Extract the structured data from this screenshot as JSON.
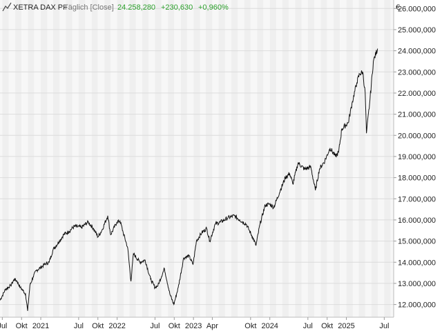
{
  "header": {
    "chart_icon": "line-chart-icon",
    "instrument": "XETRA DAX PF",
    "interval": "Täglich [Close]",
    "last": "24.258,280",
    "change": "+230,630",
    "change_pct": "+0,960%",
    "change_color": "#2ca02c",
    "currency": "€"
  },
  "colors": {
    "band_a": "#f7f7f7",
    "band_b": "#efefef",
    "grid": "#dcdcdc",
    "line": "#111111"
  },
  "chart_data": {
    "type": "line",
    "title": "XETRA DAX PF",
    "xlabel": "",
    "ylabel": "€",
    "ylim": [
      11400,
      26400
    ],
    "xlim": [
      "2020-06-20",
      "2025-08-15"
    ],
    "grid": true,
    "y_ticks": [
      {
        "value": 12000,
        "label": "12.000,000"
      },
      {
        "value": 13000,
        "label": "13.000,000"
      },
      {
        "value": 14000,
        "label": "14.000,000"
      },
      {
        "value": 15000,
        "label": "15.000,000"
      },
      {
        "value": 16000,
        "label": "16.000,000"
      },
      {
        "value": 17000,
        "label": "17.000,000"
      },
      {
        "value": 18000,
        "label": "18.000,000"
      },
      {
        "value": 19000,
        "label": "19.000,000"
      },
      {
        "value": 20000,
        "label": "20.000,000"
      },
      {
        "value": 21000,
        "label": "21.000,000"
      },
      {
        "value": 22000,
        "label": "22.000,000"
      },
      {
        "value": 23000,
        "label": "23.000,000"
      },
      {
        "value": 24000,
        "label": "24.000,000"
      },
      {
        "value": 25000,
        "label": "25.000,000"
      },
      {
        "value": 26000,
        "label": "26.000,000"
      }
    ],
    "x_ticks": [
      {
        "date": "2020-07-01",
        "label": "Jul"
      },
      {
        "date": "2020-10-01",
        "label": "Okt"
      },
      {
        "date": "2021-01-01",
        "label": "2021"
      },
      {
        "date": "2021-07-01",
        "label": "Jul"
      },
      {
        "date": "2021-10-01",
        "label": "Okt"
      },
      {
        "date": "2022-01-01",
        "label": "2022"
      },
      {
        "date": "2022-07-01",
        "label": "Jul"
      },
      {
        "date": "2022-10-01",
        "label": "Okt"
      },
      {
        "date": "2023-01-01",
        "label": "2023"
      },
      {
        "date": "2023-04-01",
        "label": "Apr"
      },
      {
        "date": "2023-10-01",
        "label": "Okt"
      },
      {
        "date": "2024-01-01",
        "label": "2024"
      },
      {
        "date": "2024-07-01",
        "label": "Jul"
      },
      {
        "date": "2024-10-01",
        "label": "Okt"
      },
      {
        "date": "2025-01-01",
        "label": "2025"
      },
      {
        "date": "2025-07-01",
        "label": "Jul"
      }
    ],
    "series": [
      {
        "x": [
          "2020-06-20",
          "2020-07-15",
          "2020-08-10",
          "2020-08-28",
          "2020-09-10",
          "2020-09-25",
          "2020-10-05",
          "2020-10-20",
          "2020-10-30",
          "2020-11-10",
          "2020-11-25",
          "2020-12-10",
          "2020-12-31",
          "2021-01-20",
          "2021-02-10",
          "2021-03-01",
          "2021-03-31",
          "2021-04-20",
          "2021-05-15",
          "2021-06-10",
          "2021-07-15",
          "2021-08-15",
          "2021-09-10",
          "2021-10-01",
          "2021-10-20",
          "2021-11-17",
          "2021-12-01",
          "2021-12-31",
          "2022-01-15",
          "2022-01-30",
          "2022-02-20",
          "2022-03-08",
          "2022-03-20",
          "2022-04-20",
          "2022-05-15",
          "2022-06-10",
          "2022-07-01",
          "2022-07-15",
          "2022-08-15",
          "2022-09-10",
          "2022-09-29",
          "2022-10-20",
          "2022-11-15",
          "2022-12-10",
          "2022-12-30",
          "2023-01-15",
          "2023-02-10",
          "2023-03-05",
          "2023-03-20",
          "2023-04-15",
          "2023-05-10",
          "2023-06-15",
          "2023-07-15",
          "2023-08-10",
          "2023-09-10",
          "2023-10-10",
          "2023-10-27",
          "2023-11-15",
          "2023-12-10",
          "2023-12-31",
          "2024-01-20",
          "2024-02-20",
          "2024-03-15",
          "2024-04-05",
          "2024-04-20",
          "2024-05-15",
          "2024-06-15",
          "2024-07-15",
          "2024-08-06",
          "2024-08-25",
          "2024-09-20",
          "2024-10-15",
          "2024-11-10",
          "2024-11-25",
          "2024-12-10",
          "2025-01-10",
          "2025-01-30",
          "2025-02-20",
          "2025-03-05",
          "2025-03-20",
          "2025-04-01",
          "2025-04-07",
          "2025-04-22",
          "2025-05-10",
          "2025-05-30"
        ],
        "y": [
          12200,
          12700,
          12900,
          13200,
          13100,
          12800,
          12700,
          12500,
          11700,
          12900,
          13300,
          13600,
          13750,
          13900,
          14000,
          14600,
          15000,
          15300,
          15450,
          15700,
          15650,
          15900,
          15600,
          15200,
          15500,
          16200,
          15300,
          15900,
          15950,
          15400,
          14700,
          13100,
          14400,
          14000,
          14100,
          13200,
          12800,
          12900,
          13700,
          12500,
          12000,
          12800,
          14200,
          14300,
          13900,
          15000,
          15400,
          15600,
          15000,
          15800,
          15900,
          16100,
          16200,
          16000,
          15800,
          15200,
          14800,
          15800,
          16700,
          16750,
          16600,
          17400,
          18000,
          18200,
          17700,
          18700,
          18400,
          18500,
          17400,
          18400,
          18800,
          19400,
          19000,
          19200,
          20300,
          20600,
          21600,
          22500,
          22900,
          23000,
          22000,
          20100,
          21500,
          23500,
          24100
        ]
      }
    ]
  }
}
